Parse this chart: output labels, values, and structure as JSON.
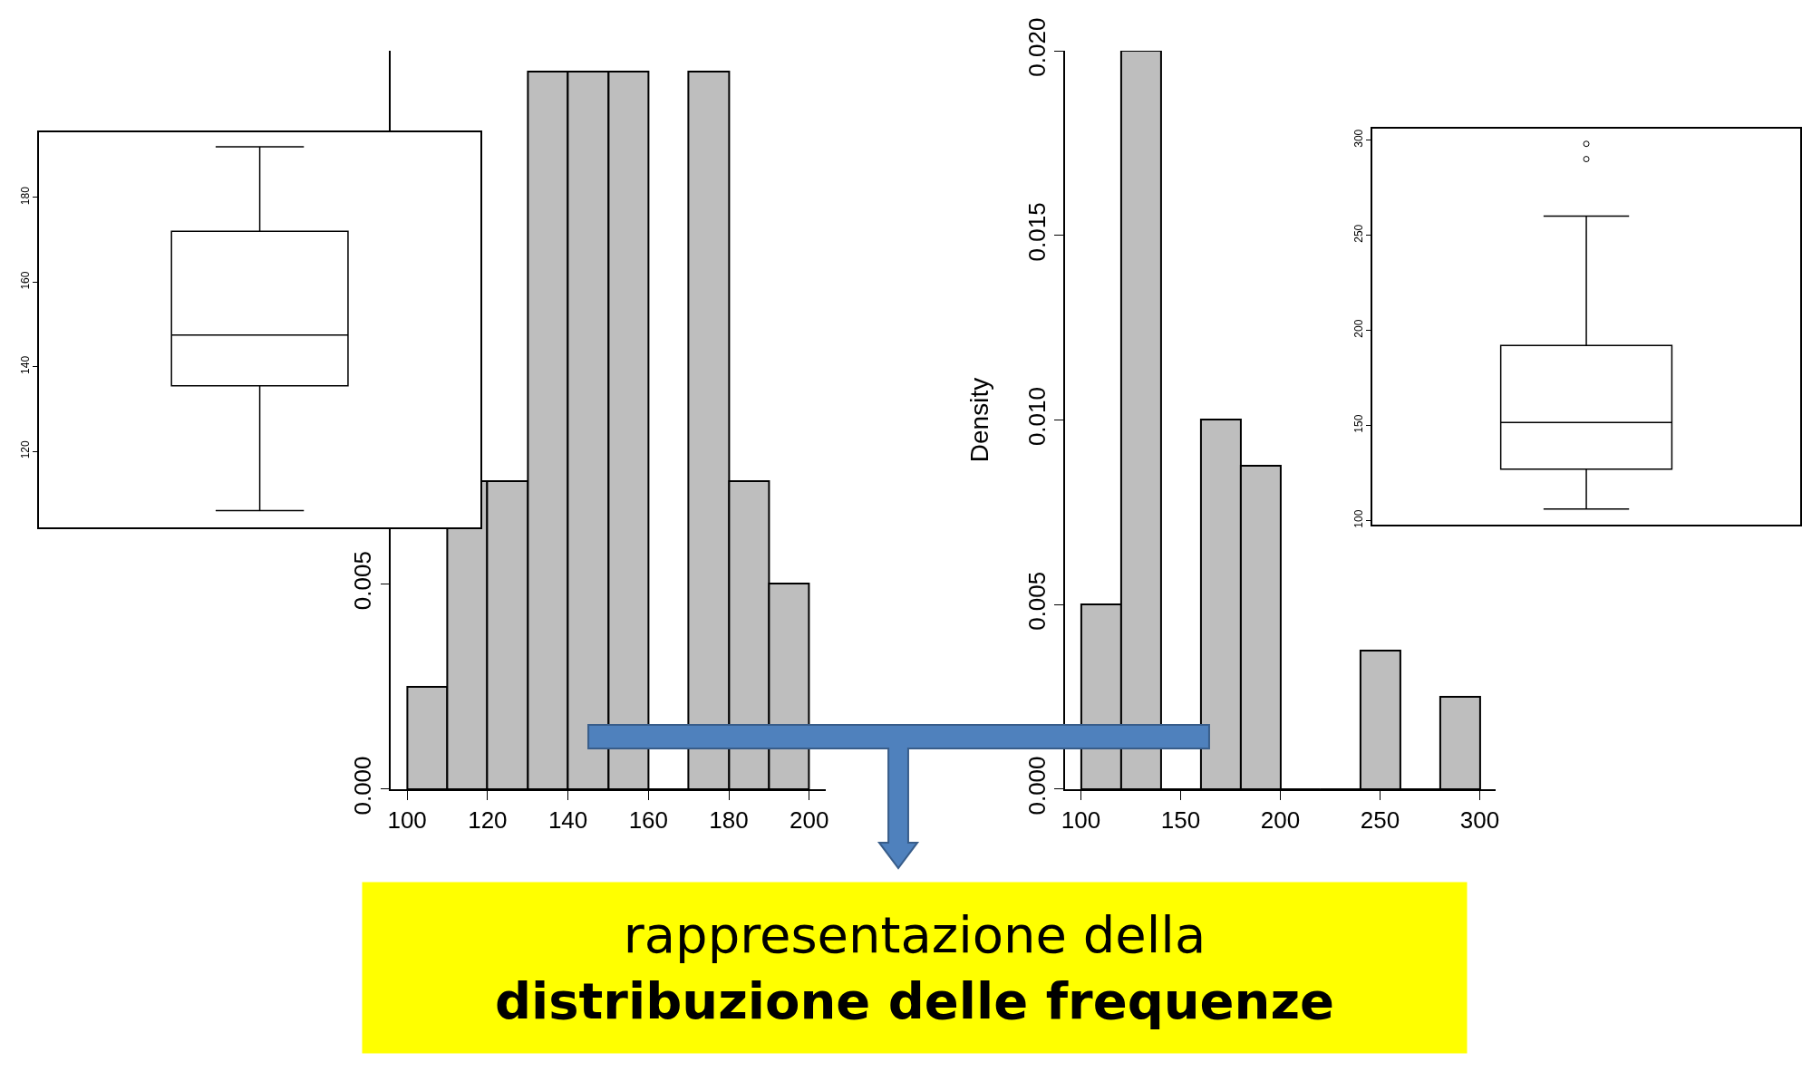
{
  "chart_data": [
    {
      "type": "histogram",
      "bins": [
        100,
        110,
        120,
        130,
        140,
        150,
        160,
        170,
        180,
        190,
        200
      ],
      "values": [
        0.0025,
        0.0075,
        0.0075,
        0.0175,
        0.0175,
        0.0175,
        0,
        0.0175,
        0.0075,
        0.005
      ],
      "color": "#bebebe",
      "xlim": [
        96,
        204
      ],
      "ylim": [
        0,
        0.018
      ],
      "xticks": [
        100,
        120,
        140,
        160,
        180,
        200
      ],
      "yticks": [
        {
          "value": 0,
          "label": "0.000"
        },
        {
          "value": 0.005,
          "label": "0.005"
        }
      ],
      "annotations": [
        "rappresentazione della",
        "distribuzione delle frequenze"
      ]
    },
    {
      "type": "box",
      "categories": [
        null
      ],
      "ylim": [
        102,
        195.5
      ],
      "yticks": [
        120,
        140,
        160,
        180
      ],
      "boxes": [
        {
          "low": 106,
          "q1": 135.5,
          "median": 147.5,
          "q3": 172,
          "high": 192
        }
      ],
      "tick_labels": "y"
    },
    {
      "type": "histogram",
      "bins": [
        100,
        120,
        140,
        160,
        180,
        200,
        220,
        240,
        260,
        280,
        300
      ],
      "values": [
        0.005,
        0.02,
        0,
        0.01,
        0.00875,
        0,
        0,
        0.00375,
        0,
        0.0025
      ],
      "color": "#bebebe",
      "xlim": [
        92,
        308
      ],
      "ylim": [
        0,
        0.02
      ],
      "xticks": [
        100,
        150,
        200,
        250,
        300
      ],
      "yticks": [
        {
          "value": 0,
          "label": "0.000"
        },
        {
          "value": 0.005,
          "label": "0.005"
        },
        {
          "value": 0.01,
          "label": "0.010"
        },
        {
          "value": 0.015,
          "label": "0.015"
        },
        {
          "value": 0.02,
          "label": "0.020"
        }
      ],
      "ylabel": "Density"
    },
    {
      "type": "box",
      "categories": [
        null
      ],
      "ylim": [
        98,
        306
      ],
      "yticks": [
        100,
        150,
        200,
        250,
        300
      ],
      "boxes": [
        {
          "low": 106,
          "q1": 127,
          "median": 151.5,
          "q3": 192,
          "high": 260,
          "outliers": [
            290,
            298
          ]
        }
      ],
      "tick_labels": "y"
    }
  ]
}
